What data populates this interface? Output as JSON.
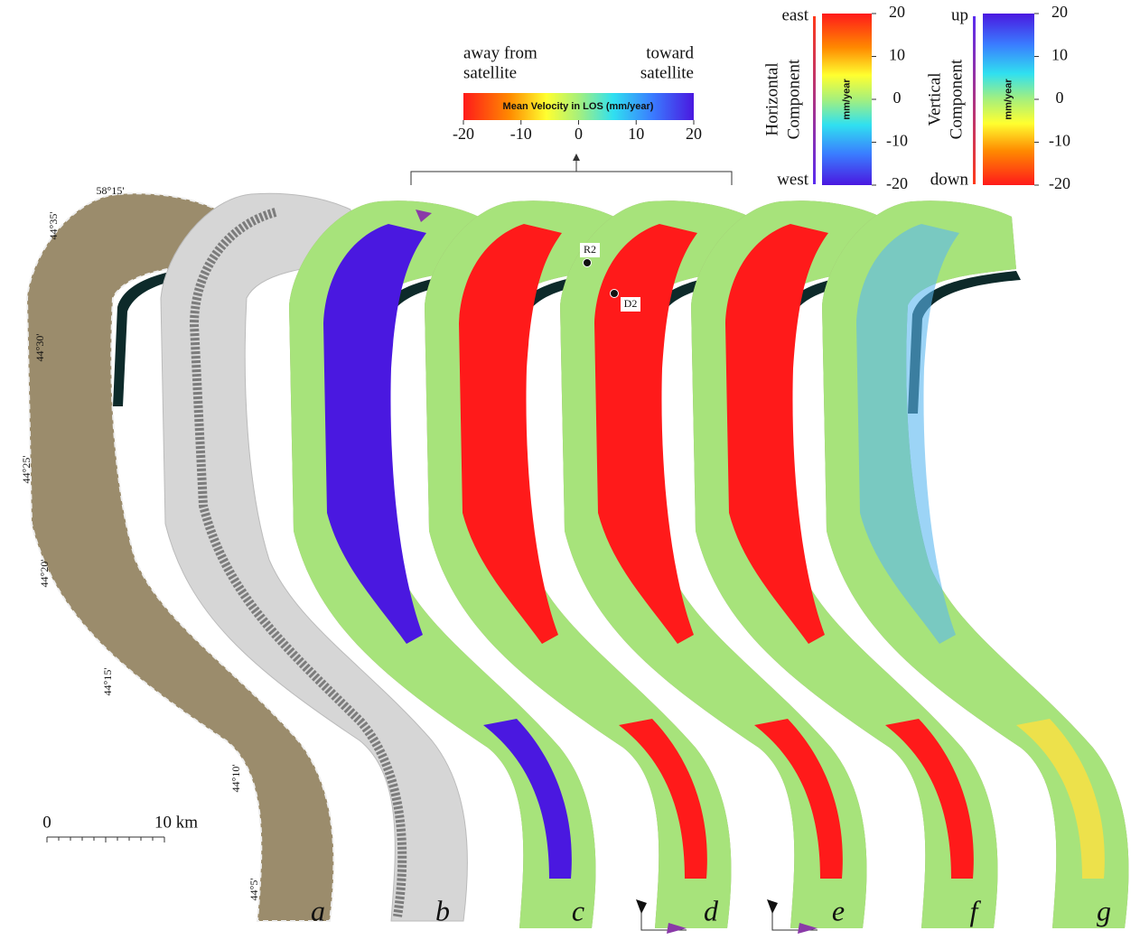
{
  "coordinates": {
    "longitude": "58°15'",
    "latitudes": [
      "44°35'",
      "44°30'",
      "44°25'",
      "44°20'",
      "44°15'",
      "44°10'",
      "44°5'"
    ]
  },
  "scale_bar": {
    "start": "0",
    "end": "10 km"
  },
  "panels": [
    "a",
    "b",
    "c",
    "d",
    "e",
    "f",
    "g"
  ],
  "points": [
    "R2",
    "D2"
  ],
  "los_legend": {
    "left_text": [
      "away from",
      "satellite"
    ],
    "right_text": [
      "toward",
      "satellite"
    ],
    "title": "Mean Velocity in LOS (mm/year)",
    "lim": [
      -20,
      20
    ],
    "ticks": [
      -20,
      -10,
      0,
      10,
      20
    ]
  },
  "horizontal_legend": {
    "top": "east",
    "bottom": "west",
    "title_lines": [
      "Horizontal",
      "Component"
    ],
    "unit": "mm/year",
    "lim": [
      -20,
      20
    ],
    "ticks": [
      20,
      10,
      0,
      -10,
      -20
    ]
  },
  "vertical_legend": {
    "top": "up",
    "bottom": "down",
    "title_lines": [
      "Vertical",
      "Component"
    ],
    "unit": "mm/year",
    "lim": [
      -20,
      20
    ],
    "ticks": [
      20,
      10,
      0,
      -10,
      -20
    ]
  }
}
